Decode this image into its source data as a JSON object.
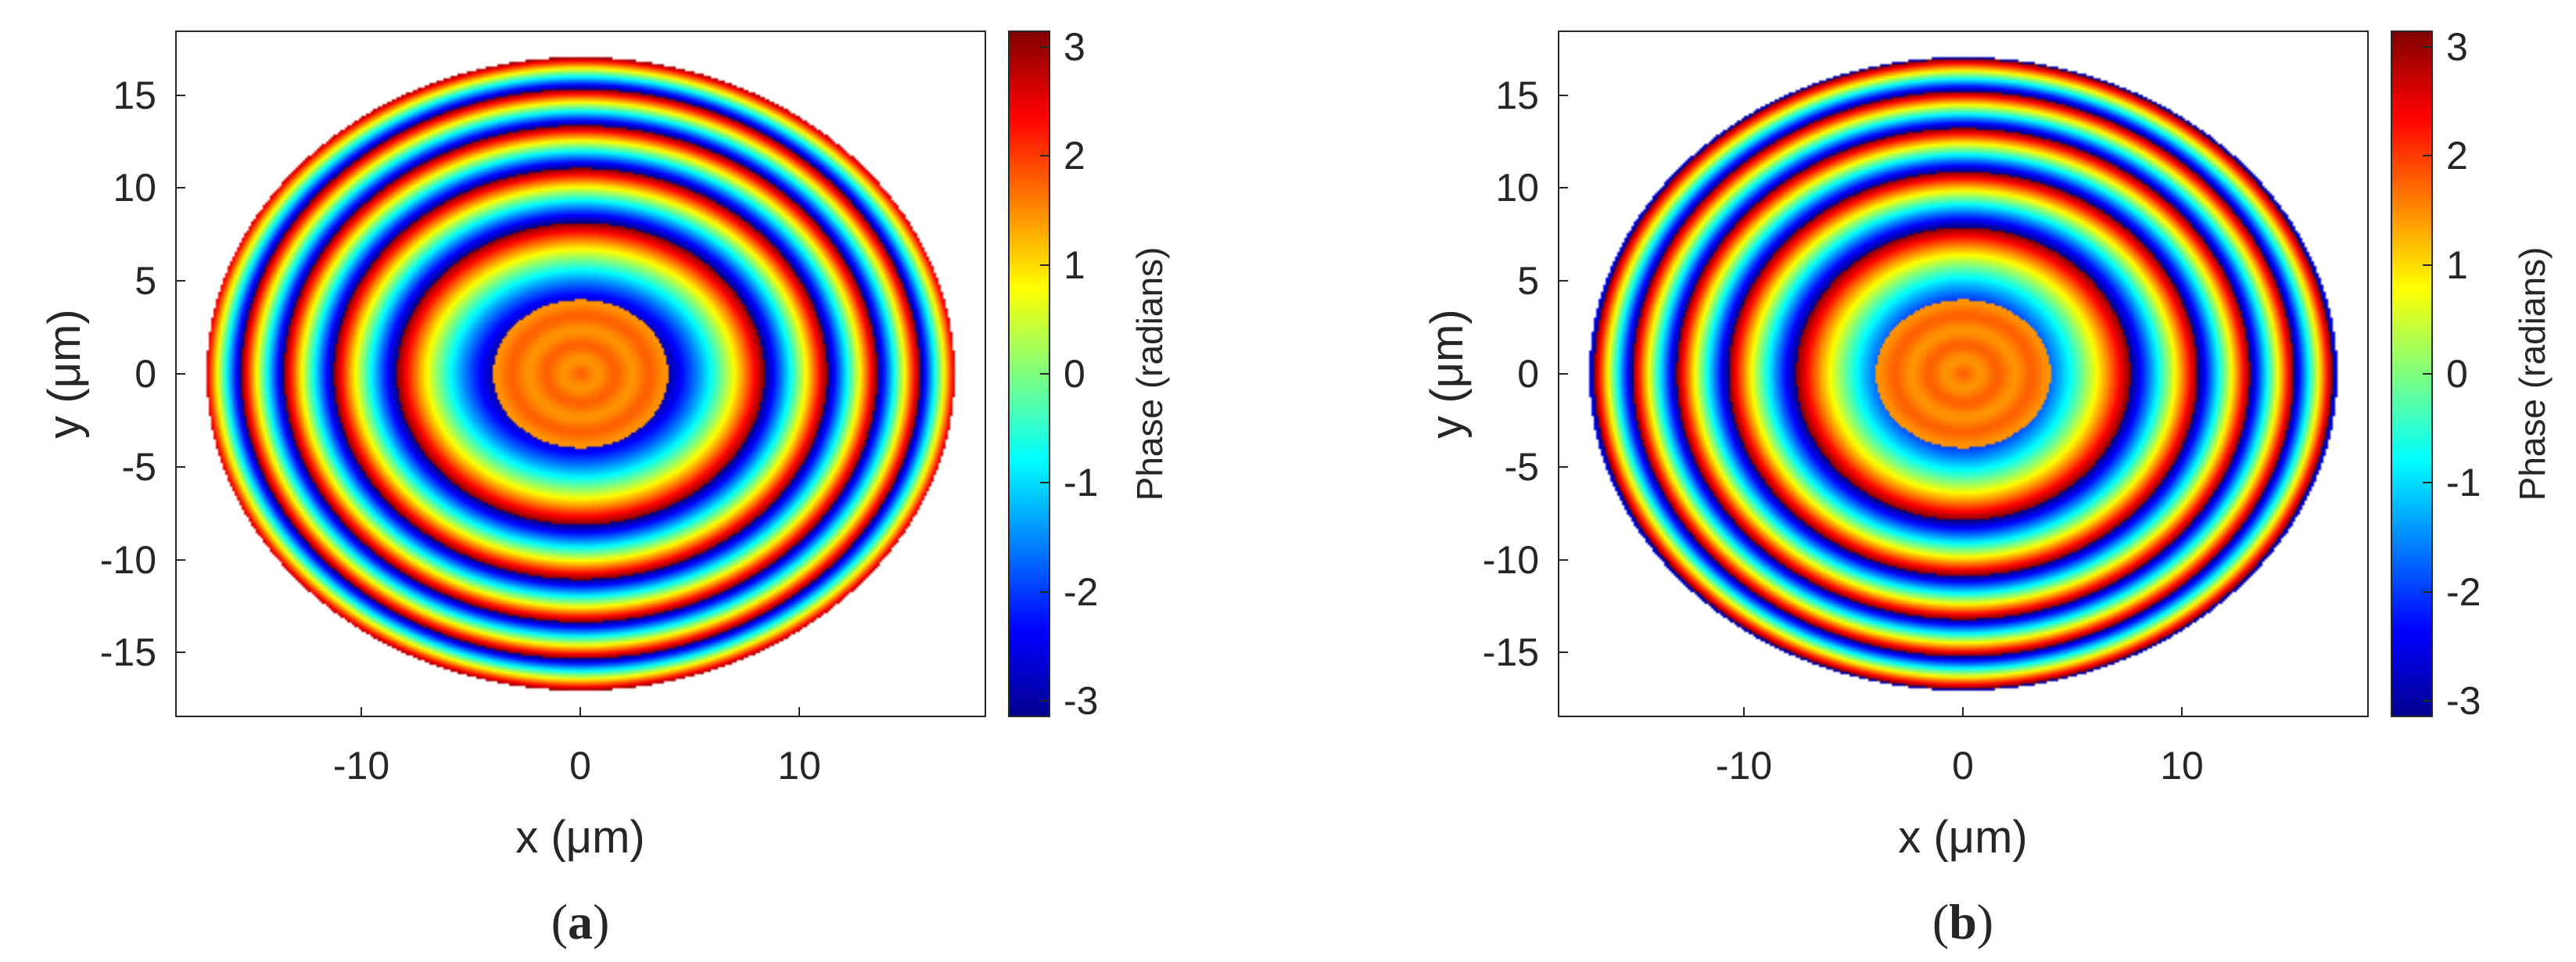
{
  "chart_data": [
    {
      "type": "heatmap",
      "panel_label": "(a)",
      "label_letter": "a",
      "xlabel": "x (μm)",
      "ylabel": "y (μm)",
      "xlim": [
        -18.5,
        18.5
      ],
      "ylim": [
        -18.5,
        18.5
      ],
      "xticks": [
        -10,
        0,
        10
      ],
      "xtick_labels": [
        "-10",
        "0",
        "10"
      ],
      "yticks": [
        15,
        10,
        5,
        0,
        -5,
        -10,
        -15
      ],
      "ytick_labels": [
        "15",
        "10",
        "5",
        "0",
        "-5",
        "-10",
        "-15"
      ],
      "aperture": {
        "shape": "ellipse",
        "center": [
          0,
          0
        ],
        "semi_axis_x": 17.1,
        "semi_axis_y": 17.1
      },
      "field": {
        "description": "concentric phase rings",
        "center_phase": 1.6,
        "ring_frequency": 0.52,
        "ring_phase_offset": 0.0,
        "angular_modulation": 0.45,
        "lobe_axis": "vertical"
      },
      "colorbar": {
        "label": "Phase (radians)",
        "range": [
          -3.14159,
          3.14159
        ],
        "ticks": [
          3,
          2,
          1,
          0,
          -1,
          -2,
          -3
        ],
        "tick_labels": [
          "3",
          "2",
          "1",
          "0",
          "-1",
          "-2",
          "-3"
        ],
        "colormap": "jet"
      },
      "grid": false
    },
    {
      "type": "heatmap",
      "panel_label": "(b)",
      "label_letter": "b",
      "xlabel": "x (μm)",
      "ylabel": "y (μm)",
      "xlim": [
        -18.5,
        18.5
      ],
      "ylim": [
        -18.5,
        18.5
      ],
      "xticks": [
        -10,
        0,
        10
      ],
      "xtick_labels": [
        "-10",
        "0",
        "10"
      ],
      "yticks": [
        15,
        10,
        5,
        0,
        -5,
        -10,
        -15
      ],
      "ytick_labels": [
        "15",
        "10",
        "5",
        "0",
        "-5",
        "-10",
        "-15"
      ],
      "aperture": {
        "shape": "ellipse",
        "center": [
          0,
          0
        ],
        "semi_axis_x": 17.1,
        "semi_axis_y": 17.1
      },
      "field": {
        "description": "concentric phase rings",
        "center_phase": 1.6,
        "ring_frequency": 0.52,
        "ring_phase_offset": 0.9,
        "angular_modulation": 0.45,
        "lobe_axis": "horizontal"
      },
      "colorbar": {
        "label": "Phase (radians)",
        "range": [
          -3.14159,
          3.14159
        ],
        "ticks": [
          3,
          2,
          1,
          0,
          -1,
          -2,
          -3
        ],
        "tick_labels": [
          "3",
          "2",
          "1",
          "0",
          "-1",
          "-2",
          "-3"
        ],
        "colormap": "jet"
      },
      "grid": false
    }
  ]
}
